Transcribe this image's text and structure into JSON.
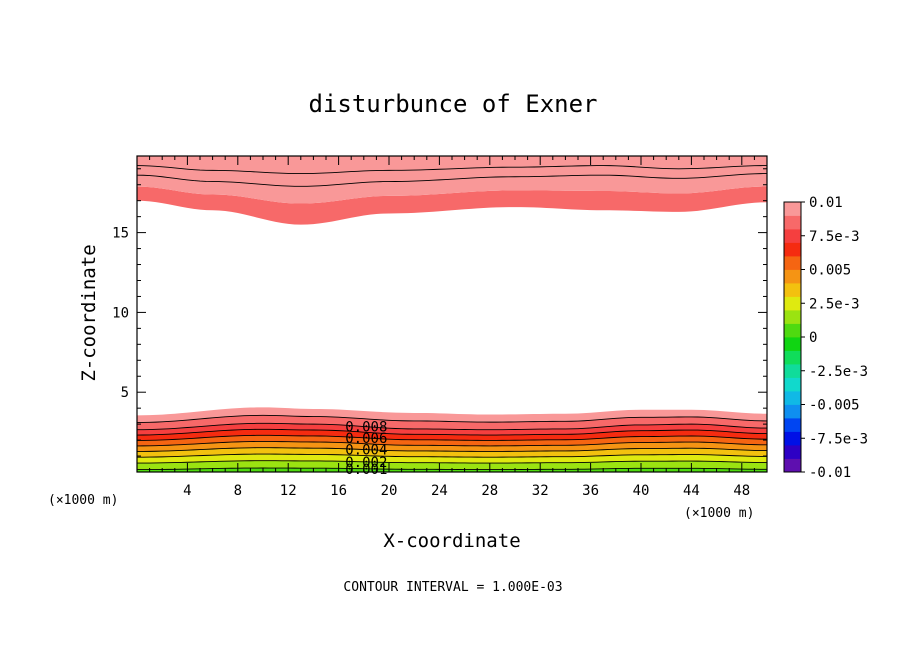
{
  "chart_data": {
    "type": "contour",
    "title": "disturbunce of Exner",
    "xlabel": "X-coordinate",
    "ylabel": "Z-coordinate",
    "x_unit_left": "(×1000 m)",
    "x_unit_right": "(×1000 m)",
    "footer": "CONTOUR INTERVAL = 1.000E-03",
    "xlim": [
      0,
      50
    ],
    "ylim": [
      0,
      19.8
    ],
    "x_ticks": [
      "4",
      "8",
      "12",
      "16",
      "20",
      "24",
      "28",
      "32",
      "36",
      "40",
      "44",
      "48"
    ],
    "x_tick_values": [
      4,
      8,
      12,
      16,
      20,
      24,
      28,
      32,
      36,
      40,
      44,
      48
    ],
    "y_ticks": [
      "5",
      "10",
      "15"
    ],
    "y_tick_values": [
      5,
      10,
      15
    ],
    "contour_interval": 0.001,
    "contour_labels": [
      "0.008",
      "0.006",
      "0.004",
      "0.002",
      "0.001"
    ],
    "colorbar": {
      "labels": [
        "0.01",
        "7.5e-3",
        "0.005",
        "2.5e-3",
        "0",
        "-2.5e-3",
        "-0.005",
        "-7.5e-3",
        "-0.01"
      ],
      "label_values": [
        0.01,
        0.0075,
        0.005,
        0.0025,
        0,
        -0.0025,
        -0.005,
        -0.0075,
        -0.01
      ],
      "colors": [
        "#5e0faf",
        "#2d00c4",
        "#0010e6",
        "#0045f2",
        "#0f8ff0",
        "#10b9e6",
        "#11d9cc",
        "#10dc9a",
        "#10dd5a",
        "#10d512",
        "#4fda10",
        "#9be311",
        "#dfea10",
        "#f3c10f",
        "#f59414",
        "#f56512",
        "#f52b10",
        "#f53f3f",
        "#f76969",
        "#f99898"
      ]
    },
    "bottom_layer": {
      "levels": [
        0.001,
        0.002,
        0.003,
        0.004,
        0.005,
        0.006,
        0.007,
        0.008,
        0.009,
        0.01
      ],
      "z_at_x": {
        "x": [
          0,
          10,
          14,
          22,
          28,
          34,
          40,
          44,
          50
        ],
        "level_0_001": [
          0.15,
          0.25,
          0.24,
          0.17,
          0.15,
          0.17,
          0.23,
          0.23,
          0.17
        ],
        "level_0_008": [
          2.65,
          3.05,
          3.0,
          2.7,
          2.65,
          2.7,
          2.95,
          3.0,
          2.75
        ],
        "level_0_01": [
          3.55,
          4.05,
          3.95,
          3.7,
          3.6,
          3.65,
          3.9,
          3.9,
          3.65
        ]
      }
    },
    "top_layer": {
      "levels": [
        0.008,
        0.009,
        0.01
      ],
      "z_at_x": {
        "x": [
          0,
          6,
          13,
          20,
          30,
          37,
          43,
          50
        ],
        "level_0_01_lower": [
          17.0,
          16.4,
          15.5,
          16.2,
          16.6,
          16.4,
          16.3,
          16.9
        ],
        "level_0_01_inner": [
          18.6,
          18.2,
          17.9,
          18.2,
          18.5,
          18.6,
          18.4,
          18.7
        ],
        "level_0_01_upper": [
          19.2,
          18.9,
          18.7,
          18.9,
          19.1,
          19.2,
          19.0,
          19.2
        ]
      }
    }
  }
}
